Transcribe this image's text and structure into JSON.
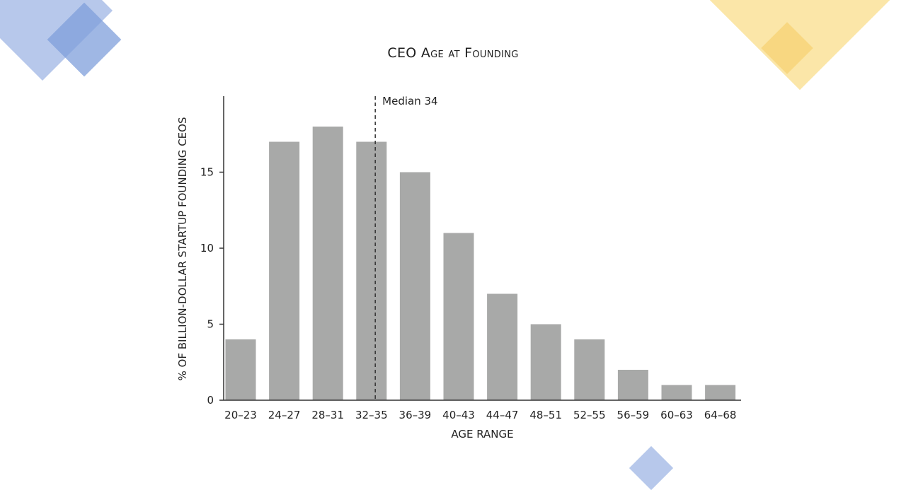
{
  "colors": {
    "bar": "#a8a9a8",
    "axis": "#333333",
    "median_line": "#333333",
    "deco_blue": "#9fb8e4",
    "deco_blue_dark": "#7f9fdb",
    "deco_yellow": "#f9e09a",
    "deco_yellow_dark": "#f7d377"
  },
  "chart_data": {
    "type": "bar",
    "title": "CEO Age at Founding",
    "xlabel": "AGE RANGE",
    "ylabel": "% OF BILLION-DOLLAR STARTUP FOUNDING CEOS",
    "categories": [
      "20–23",
      "24–27",
      "28–31",
      "32–35",
      "36–39",
      "40–43",
      "44–47",
      "48–51",
      "52–55",
      "56–59",
      "60–63",
      "64–68"
    ],
    "values": [
      4,
      17,
      18,
      17,
      15,
      11,
      7,
      5,
      4,
      2,
      1,
      1
    ],
    "ylim": [
      0,
      20
    ],
    "yticks": [
      0,
      5,
      10,
      15
    ],
    "grid": false,
    "median": {
      "value": 34,
      "label": "Median 34"
    }
  }
}
